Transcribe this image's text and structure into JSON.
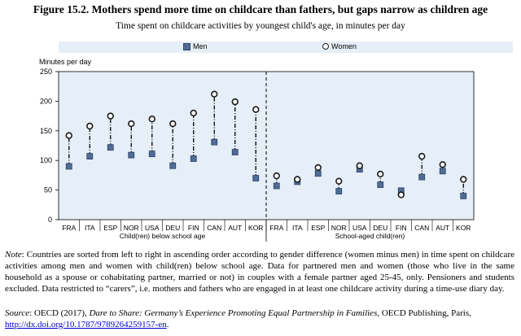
{
  "title": "Figure 15.2. Mothers spend more time on childcare than fathers, but gaps narrow as children age",
  "subtitle": "Time spent on childcare activities by youngest child's age, in minutes per day",
  "legend": {
    "men": "Men",
    "women": "Women"
  },
  "colors": {
    "panel_bg": "#e6eef7",
    "men_marker": "#4f6d95",
    "women_marker": "#ffffff",
    "connector": "#000000"
  },
  "note": {
    "label": "Note",
    "text": ": Countries are sorted from left to right in ascending order according to gender difference (women minus men) in time spent on childcare activities among men and women with child(ren) below school age. Data for partnered men and women (those who live in the same household as a spouse or cohabitating partner, married or not) in couples with a female partner aged 25-45, only. Pensioners and students excluded. Data restricted to “carers”, i.e. mothers and fathers who are engaged in at least one childcare activity during a time-use diary day."
  },
  "source": {
    "label": "Source",
    "prefix": ": OECD (2017), ",
    "italic": "Dare to Share: Germany’s Experience Promoting Equal Partnership in Families",
    "suffix": ", OECD Publishing, Paris, ",
    "link": "http://dx.doi.org/10.1787/9789264259157-en",
    "end": "."
  },
  "chart_data": {
    "type": "scatter",
    "ylabel": "Minutes per day",
    "ylim": [
      0,
      250
    ],
    "yticks": [
      0,
      50,
      100,
      150,
      200,
      250
    ],
    "grid": false,
    "legend_position": "top",
    "panels": [
      {
        "label": "Child(ren) below school age",
        "categories": [
          "FRA",
          "ITA",
          "ESP",
          "NOR",
          "USA",
          "DEU",
          "FIN",
          "CAN",
          "AUT",
          "KOR"
        ],
        "series": [
          {
            "name": "Men",
            "values": [
              90,
              107,
              122,
              109,
              111,
              91,
              103,
              131,
              114,
              70
            ]
          },
          {
            "name": "Women",
            "values": [
              142,
              158,
              175,
              162,
              170,
              162,
              180,
              212,
              199,
              186
            ]
          }
        ]
      },
      {
        "label": "School-aged child(ren)",
        "categories": [
          "FRA",
          "ITA",
          "ESP",
          "NOR",
          "USA",
          "DEU",
          "FIN",
          "CAN",
          "AUT",
          "KOR"
        ],
        "series": [
          {
            "name": "Men",
            "values": [
              57,
              64,
              78,
              48,
              85,
              59,
              49,
              72,
              82,
              40
            ]
          },
          {
            "name": "Women",
            "values": [
              74,
              68,
              88,
              65,
              91,
              77,
              42,
              107,
              93,
              68
            ]
          }
        ]
      }
    ]
  }
}
